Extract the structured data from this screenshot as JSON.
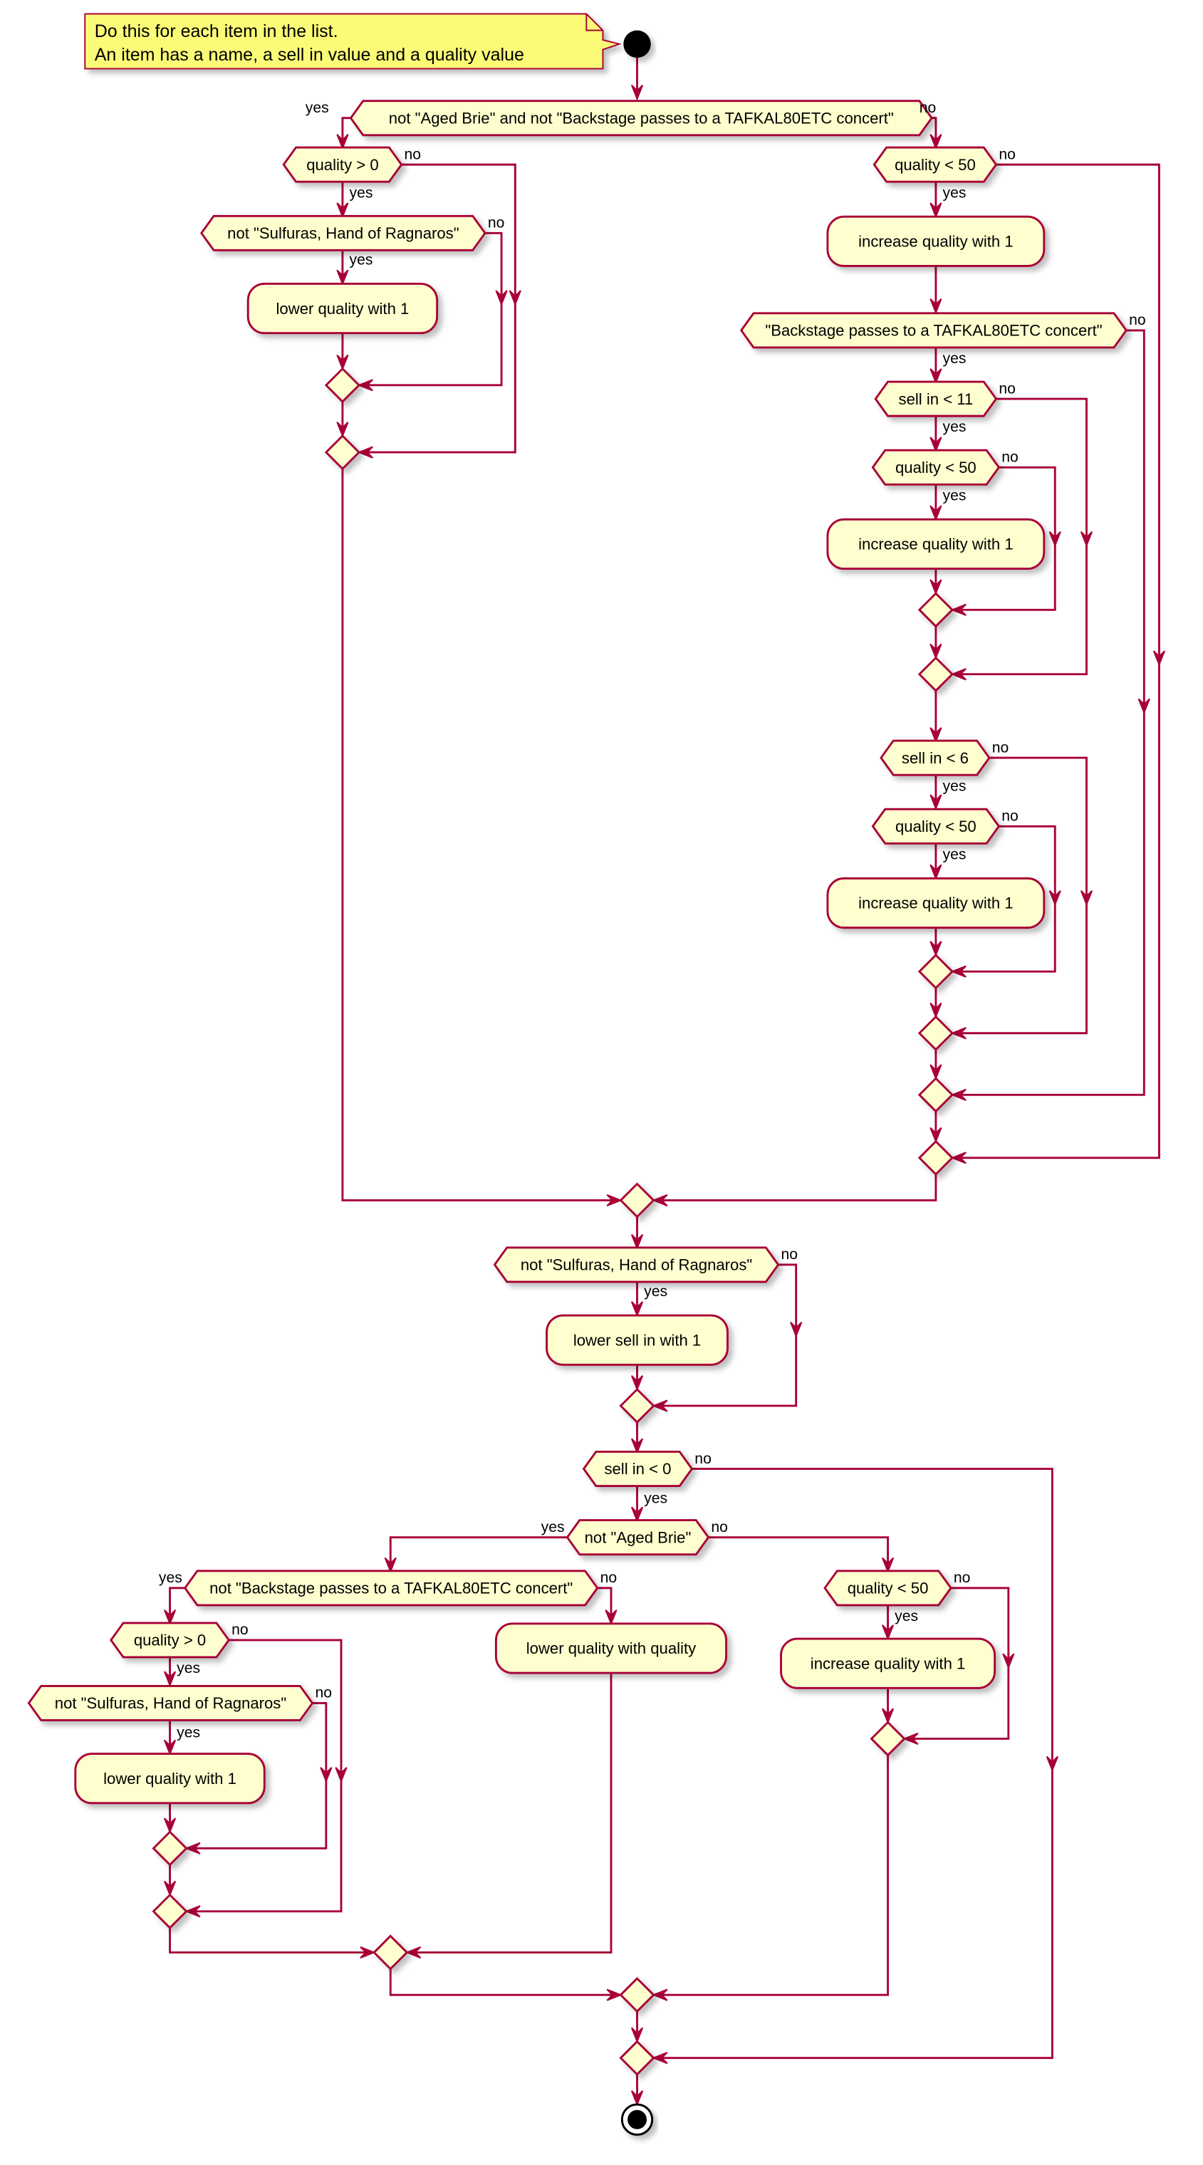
{
  "colors": {
    "border": "#A80036",
    "node_fill": "#FEFECE",
    "note_fill": "#FBFB77",
    "start_end": "#000000"
  },
  "branch_labels": {
    "yes": "yes",
    "no": "no"
  },
  "note": {
    "line1": "Do this for each item in the list.",
    "line2": "An item has a name, a sell in value and a quality value"
  },
  "nodes": {
    "d_main": "not \"Aged Brie\" and not \"Backstage passes to a TAFKAL80ETC concert\"",
    "d_q_gt0_a": "quality > 0",
    "d_sulf_a": "not \"Sulfuras, Hand of Ragnaros\"",
    "a_lower_a": "lower quality with 1",
    "d_q_lt50_a": "quality < 50",
    "a_inc_a": "increase quality with 1",
    "d_backstage": "\"Backstage passes to a TAFKAL80ETC concert\"",
    "d_sell_lt11": "sell in < 11",
    "d_q_lt50_b": "quality < 50",
    "a_inc_b": "increase quality with 1",
    "d_sell_lt6": "sell in < 6",
    "d_q_lt50_c": "quality < 50",
    "a_inc_c": "increase quality with 1",
    "d_sulf_b": "not \"Sulfuras, Hand of Ragnaros\"",
    "a_lower_sell": "lower sell in with 1",
    "d_sell_lt0": "sell in < 0",
    "d_not_brie": "not \"Aged Brie\"",
    "d_not_backstage": "not \"Backstage passes to a TAFKAL80ETC concert\"",
    "a_lower_qq": "lower quality with quality",
    "d_q_gt0_b": "quality > 0",
    "d_sulf_c": "not \"Sulfuras, Hand of Ragnaros\"",
    "a_lower_b": "lower quality with 1",
    "d_q_lt50_d": "quality < 50",
    "a_inc_d": "increase quality with 1"
  }
}
